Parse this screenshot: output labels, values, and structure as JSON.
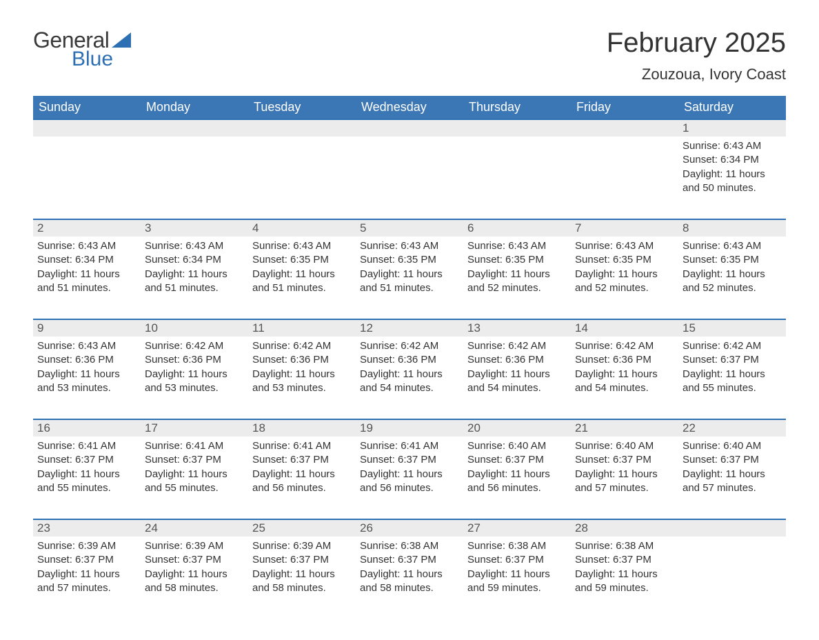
{
  "logo": {
    "text1": "General",
    "text2": "Blue",
    "text1_color": "#3a3a3a",
    "text2_color": "#2c6fb3",
    "triangle_color": "#2c6fb3"
  },
  "header": {
    "month_title": "February 2025",
    "location": "Zouzoua, Ivory Coast"
  },
  "style": {
    "header_bg": "#3b76b5",
    "header_text_color": "#ffffff",
    "daynum_bg": "#ececec",
    "daynum_border_top": "#2c6fb3",
    "body_bg": "#ffffff",
    "text_color": "#333333",
    "title_fontsize": 40,
    "location_fontsize": 22,
    "dayhead_fontsize": 18,
    "daynum_fontsize": 17,
    "data_fontsize": 15
  },
  "weekdays": [
    "Sunday",
    "Monday",
    "Tuesday",
    "Wednesday",
    "Thursday",
    "Friday",
    "Saturday"
  ],
  "weeks": [
    [
      null,
      null,
      null,
      null,
      null,
      null,
      {
        "n": "1",
        "sunrise": "Sunrise: 6:43 AM",
        "sunset": "Sunset: 6:34 PM",
        "daylight": "Daylight: 11 hours and 50 minutes."
      }
    ],
    [
      {
        "n": "2",
        "sunrise": "Sunrise: 6:43 AM",
        "sunset": "Sunset: 6:34 PM",
        "daylight": "Daylight: 11 hours and 51 minutes."
      },
      {
        "n": "3",
        "sunrise": "Sunrise: 6:43 AM",
        "sunset": "Sunset: 6:34 PM",
        "daylight": "Daylight: 11 hours and 51 minutes."
      },
      {
        "n": "4",
        "sunrise": "Sunrise: 6:43 AM",
        "sunset": "Sunset: 6:35 PM",
        "daylight": "Daylight: 11 hours and 51 minutes."
      },
      {
        "n": "5",
        "sunrise": "Sunrise: 6:43 AM",
        "sunset": "Sunset: 6:35 PM",
        "daylight": "Daylight: 11 hours and 51 minutes."
      },
      {
        "n": "6",
        "sunrise": "Sunrise: 6:43 AM",
        "sunset": "Sunset: 6:35 PM",
        "daylight": "Daylight: 11 hours and 52 minutes."
      },
      {
        "n": "7",
        "sunrise": "Sunrise: 6:43 AM",
        "sunset": "Sunset: 6:35 PM",
        "daylight": "Daylight: 11 hours and 52 minutes."
      },
      {
        "n": "8",
        "sunrise": "Sunrise: 6:43 AM",
        "sunset": "Sunset: 6:35 PM",
        "daylight": "Daylight: 11 hours and 52 minutes."
      }
    ],
    [
      {
        "n": "9",
        "sunrise": "Sunrise: 6:43 AM",
        "sunset": "Sunset: 6:36 PM",
        "daylight": "Daylight: 11 hours and 53 minutes."
      },
      {
        "n": "10",
        "sunrise": "Sunrise: 6:42 AM",
        "sunset": "Sunset: 6:36 PM",
        "daylight": "Daylight: 11 hours and 53 minutes."
      },
      {
        "n": "11",
        "sunrise": "Sunrise: 6:42 AM",
        "sunset": "Sunset: 6:36 PM",
        "daylight": "Daylight: 11 hours and 53 minutes."
      },
      {
        "n": "12",
        "sunrise": "Sunrise: 6:42 AM",
        "sunset": "Sunset: 6:36 PM",
        "daylight": "Daylight: 11 hours and 54 minutes."
      },
      {
        "n": "13",
        "sunrise": "Sunrise: 6:42 AM",
        "sunset": "Sunset: 6:36 PM",
        "daylight": "Daylight: 11 hours and 54 minutes."
      },
      {
        "n": "14",
        "sunrise": "Sunrise: 6:42 AM",
        "sunset": "Sunset: 6:36 PM",
        "daylight": "Daylight: 11 hours and 54 minutes."
      },
      {
        "n": "15",
        "sunrise": "Sunrise: 6:42 AM",
        "sunset": "Sunset: 6:37 PM",
        "daylight": "Daylight: 11 hours and 55 minutes."
      }
    ],
    [
      {
        "n": "16",
        "sunrise": "Sunrise: 6:41 AM",
        "sunset": "Sunset: 6:37 PM",
        "daylight": "Daylight: 11 hours and 55 minutes."
      },
      {
        "n": "17",
        "sunrise": "Sunrise: 6:41 AM",
        "sunset": "Sunset: 6:37 PM",
        "daylight": "Daylight: 11 hours and 55 minutes."
      },
      {
        "n": "18",
        "sunrise": "Sunrise: 6:41 AM",
        "sunset": "Sunset: 6:37 PM",
        "daylight": "Daylight: 11 hours and 56 minutes."
      },
      {
        "n": "19",
        "sunrise": "Sunrise: 6:41 AM",
        "sunset": "Sunset: 6:37 PM",
        "daylight": "Daylight: 11 hours and 56 minutes."
      },
      {
        "n": "20",
        "sunrise": "Sunrise: 6:40 AM",
        "sunset": "Sunset: 6:37 PM",
        "daylight": "Daylight: 11 hours and 56 minutes."
      },
      {
        "n": "21",
        "sunrise": "Sunrise: 6:40 AM",
        "sunset": "Sunset: 6:37 PM",
        "daylight": "Daylight: 11 hours and 57 minutes."
      },
      {
        "n": "22",
        "sunrise": "Sunrise: 6:40 AM",
        "sunset": "Sunset: 6:37 PM",
        "daylight": "Daylight: 11 hours and 57 minutes."
      }
    ],
    [
      {
        "n": "23",
        "sunrise": "Sunrise: 6:39 AM",
        "sunset": "Sunset: 6:37 PM",
        "daylight": "Daylight: 11 hours and 57 minutes."
      },
      {
        "n": "24",
        "sunrise": "Sunrise: 6:39 AM",
        "sunset": "Sunset: 6:37 PM",
        "daylight": "Daylight: 11 hours and 58 minutes."
      },
      {
        "n": "25",
        "sunrise": "Sunrise: 6:39 AM",
        "sunset": "Sunset: 6:37 PM",
        "daylight": "Daylight: 11 hours and 58 minutes."
      },
      {
        "n": "26",
        "sunrise": "Sunrise: 6:38 AM",
        "sunset": "Sunset: 6:37 PM",
        "daylight": "Daylight: 11 hours and 58 minutes."
      },
      {
        "n": "27",
        "sunrise": "Sunrise: 6:38 AM",
        "sunset": "Sunset: 6:37 PM",
        "daylight": "Daylight: 11 hours and 59 minutes."
      },
      {
        "n": "28",
        "sunrise": "Sunrise: 6:38 AM",
        "sunset": "Sunset: 6:37 PM",
        "daylight": "Daylight: 11 hours and 59 minutes."
      },
      null
    ]
  ]
}
